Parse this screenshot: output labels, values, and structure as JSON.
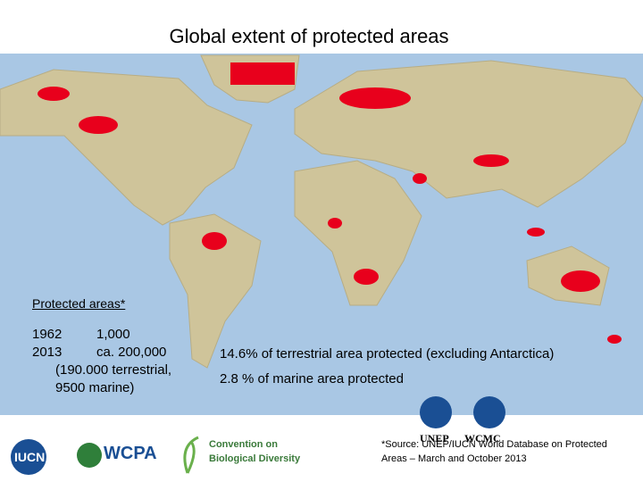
{
  "header": {
    "title": "Global extent of protected areas"
  },
  "stats": {
    "heading": "Protected areas*",
    "rows": [
      [
        "1962",
        "1,000"
      ],
      [
        "2013",
        "ca. 200,000"
      ]
    ],
    "note": [
      "(190.000 terrestrial,",
      "9500 marine)"
    ]
  },
  "facts": [
    "14.6% of terrestrial area protected (excluding Antarctica)",
    "2.8 % of marine area protected"
  ],
  "source": [
    "*Source: UNEP/IUCN World Database on Protected",
    "Areas – March and October 2013"
  ],
  "logos": {
    "iucn": "IUCN",
    "wcpa": "WCPA",
    "cbd": [
      "Convention on",
      "Biological Diversity"
    ],
    "unep": "UNEP",
    "wcmc": "WCMC"
  }
}
